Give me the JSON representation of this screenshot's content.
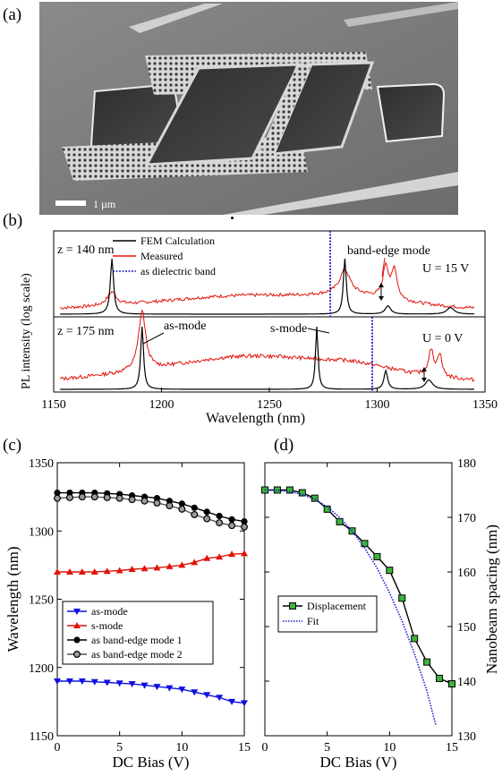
{
  "panels": {
    "a": "(a)",
    "b": "(b)",
    "c": "(c)",
    "d": "(d)"
  },
  "sem": {
    "scalebar_label": "1 µm"
  },
  "panel_b": {
    "xlabel": "Wavelength (nm)",
    "ylabel": "PL intensity (log scale)",
    "xticks": [
      "1150",
      "1200",
      "1250",
      "1300",
      "1350"
    ],
    "legend": [
      "FEM Calculation",
      "Measured",
      "as dielectric band"
    ],
    "top": {
      "z": "z = 140 nm",
      "U": "U = 15 V",
      "annotation": "band-edge mode"
    },
    "bottom": {
      "z": "z = 175 nm",
      "U": "U = 0 V",
      "annotation_as": "as-mode",
      "annotation_s": "s-mode"
    },
    "colors": {
      "fem": "#000000",
      "measured": "#e0140c",
      "band": "#1a1acc"
    }
  },
  "chart_data": [
    {
      "type": "line",
      "title": "",
      "xlabel": "DC Bias (V)",
      "ylabel": "Wavelength (nm)",
      "xlim": [
        0,
        15
      ],
      "ylim": [
        1150,
        1350
      ],
      "xticks": [
        "0",
        "5",
        "10",
        "15"
      ],
      "yticks": [
        "1150",
        "1200",
        "1250",
        "1300",
        "1350"
      ],
      "x": [
        0,
        1,
        2,
        3,
        4,
        5,
        6,
        7,
        8,
        9,
        10,
        11,
        12,
        13,
        14,
        15
      ],
      "legend": [
        "as-mode",
        "s-mode",
        "as band-edge mode 1",
        "as band-edge mode 2"
      ],
      "series": [
        {
          "name": "as-mode",
          "color": "#1010e0",
          "marker": "triangle-down",
          "values": [
            1190,
            1190,
            1190,
            1189.5,
            1189,
            1188.5,
            1188,
            1187,
            1186,
            1185,
            1184,
            1182,
            1180,
            1178,
            1175,
            1174
          ]
        },
        {
          "name": "s-mode",
          "color": "#e0140c",
          "marker": "triangle-up",
          "values": [
            1270,
            1270,
            1270,
            1270,
            1270.5,
            1271,
            1272,
            1272.5,
            1273,
            1274,
            1275,
            1277,
            1280,
            1281,
            1283,
            1283.5
          ]
        },
        {
          "name": "as band-edge mode 1",
          "color": "#000000",
          "marker": "circle",
          "values": [
            1328,
            1328,
            1328,
            1328,
            1327.5,
            1327,
            1326,
            1325,
            1324,
            1322,
            1320,
            1317,
            1314,
            1311,
            1308.5,
            1307
          ]
        },
        {
          "name": "as band-edge mode 2",
          "color": "#555555",
          "marker": "circle-open",
          "values": [
            1324,
            1324.5,
            1325,
            1325,
            1324.5,
            1324,
            1323,
            1322,
            1320.5,
            1318.5,
            1316,
            1312,
            1309,
            1306,
            1304,
            1303
          ]
        }
      ]
    },
    {
      "type": "line",
      "title": "",
      "xlabel": "DC Bias (V)",
      "ylabel": "Nanobeam spacing (nm)",
      "xlim": [
        0,
        15
      ],
      "ylim": [
        130,
        180
      ],
      "xticks": [
        "0",
        "5",
        "10",
        "15"
      ],
      "yticks": [
        "130",
        "140",
        "150",
        "160",
        "170",
        "180"
      ],
      "legend": [
        "Displacement",
        "Fit"
      ],
      "series": [
        {
          "name": "Displacement",
          "color": "#000000",
          "marker_fill": "#3cb43c",
          "x": [
            0,
            1,
            2,
            3,
            4,
            5,
            6,
            7,
            8,
            9,
            10,
            11,
            12,
            13,
            14,
            15
          ],
          "values": [
            175,
            175,
            175,
            174.5,
            173.5,
            171.5,
            169.2,
            167.5,
            165.2,
            162.8,
            160.3,
            155.2,
            147.8,
            143.5,
            140.5,
            139.5
          ]
        },
        {
          "name": "Fit",
          "color": "#1a1acc",
          "style": "dotted",
          "x": [
            0,
            1,
            2,
            3,
            4,
            5,
            6,
            7,
            8,
            9,
            10,
            11,
            12,
            13,
            13.7
          ],
          "values": [
            175,
            174.95,
            174.7,
            174.2,
            173.3,
            171.9,
            170,
            167.5,
            164.4,
            160.7,
            156.2,
            151,
            145,
            138.2,
            132
          ]
        }
      ]
    }
  ]
}
